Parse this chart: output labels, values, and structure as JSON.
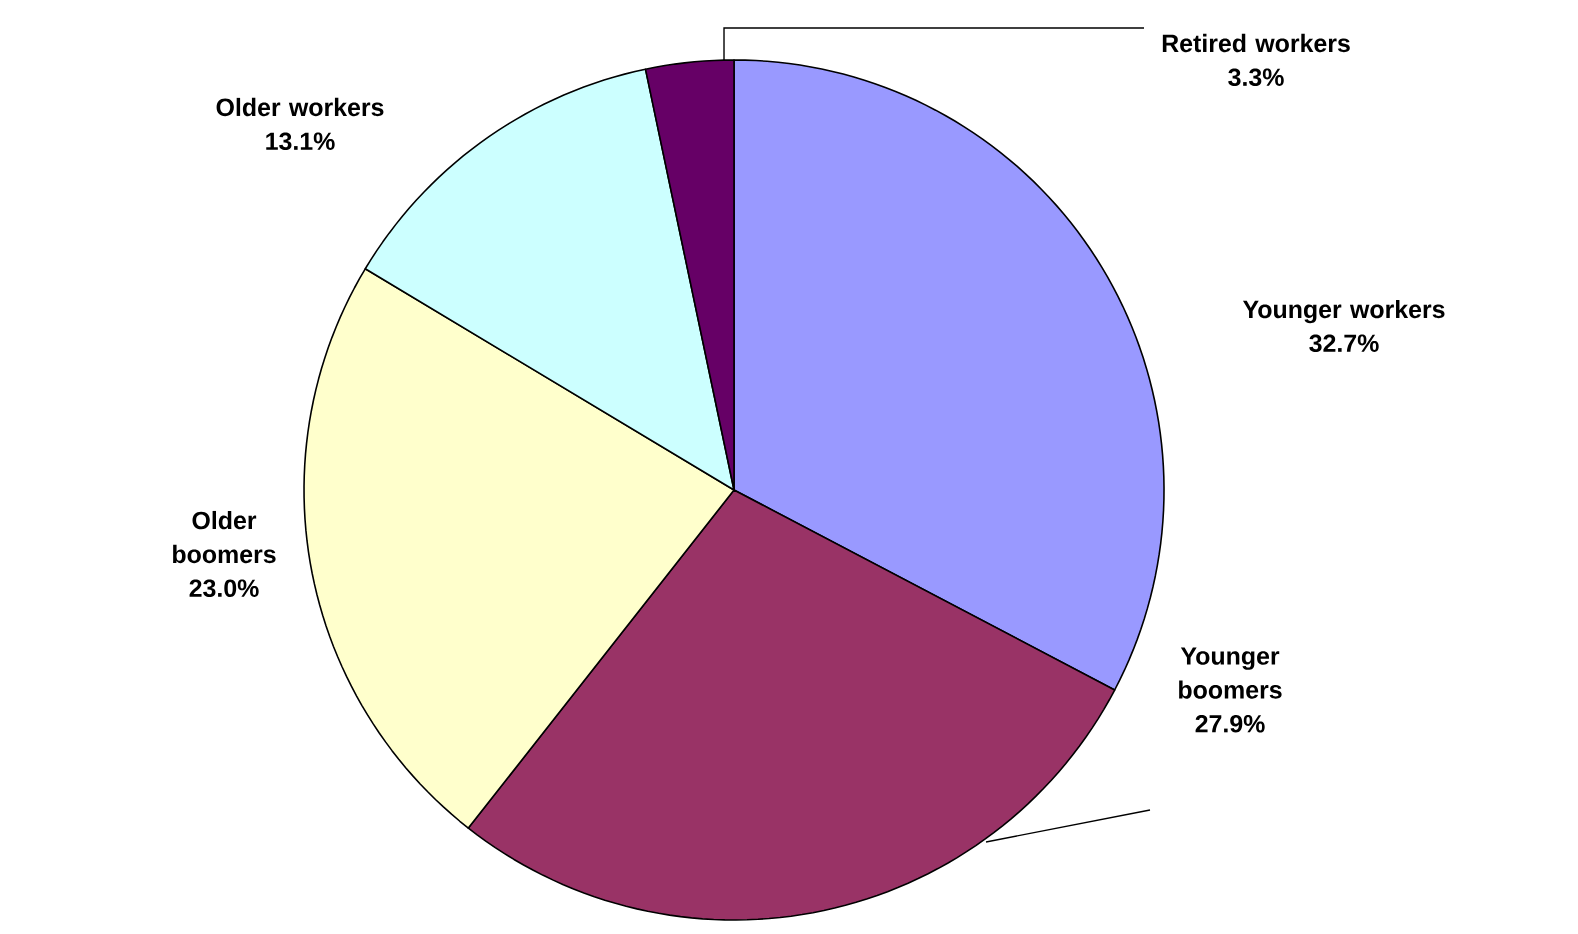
{
  "chart_data": {
    "type": "pie",
    "categories": [
      "Younger workers",
      "Younger boomers",
      "Older boomers",
      "Older workers",
      "Retired workers"
    ],
    "values": [
      32.7,
      27.9,
      23.0,
      13.1,
      3.3
    ],
    "colors": [
      "#9999ff",
      "#993366",
      "#ffffcc",
      "#ccffff",
      "#660066"
    ],
    "value_labels": [
      "32.7%",
      "27.9%",
      "23.0%",
      "13.1%",
      "3.3%"
    ]
  }
}
